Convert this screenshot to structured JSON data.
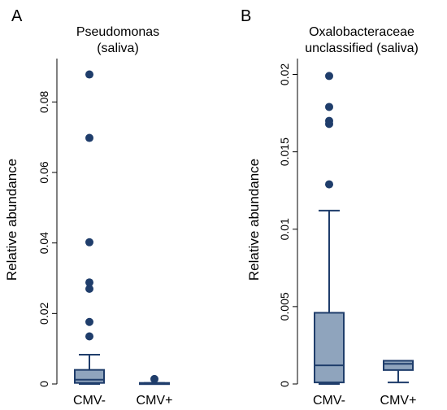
{
  "colors": {
    "box_fill": "#8fa4bd",
    "stroke": "#1f3d6b",
    "outlier": "#1f3d6b",
    "axis": "#000000"
  },
  "chart_data": [
    {
      "type": "box",
      "panel": "A",
      "title_lines": [
        "Pseudomonas",
        "(saliva)"
      ],
      "ylabel": "Relative abundance",
      "ylim": [
        0,
        0.09
      ],
      "yticks": [
        0,
        0.02,
        0.04,
        0.06,
        0.08
      ],
      "ytick_labels": [
        "0",
        "0.02",
        "0.04",
        "0.06",
        "0.08"
      ],
      "categories": [
        "CMV-",
        "CMV+"
      ],
      "boxes": [
        {
          "category": "CMV-",
          "whisker_low": 0,
          "q1": 0.0003,
          "median": 0.0012,
          "q3": 0.004,
          "whisker_high": 0.0083,
          "outliers": [
            0.0135,
            0.0176,
            0.027,
            0.0288,
            0.0402,
            0.0698,
            0.0878
          ]
        },
        {
          "category": "CMV+",
          "whisker_low": 0,
          "q1": 0,
          "median": 0.0002,
          "q3": 0.0003,
          "whisker_high": 0.0003,
          "outliers": [
            0.0014
          ]
        }
      ]
    },
    {
      "type": "box",
      "panel": "B",
      "title_lines": [
        "Oxalobacteraceae",
        "unclassified (saliva)"
      ],
      "ylabel": "Relative abundance",
      "ylim": [
        0,
        0.0205
      ],
      "yticks": [
        0,
        0.005,
        0.01,
        0.015,
        0.02
      ],
      "ytick_labels": [
        "0",
        "0.005",
        "0.01",
        "0.015",
        "0.02"
      ],
      "categories": [
        "CMV-",
        "CMV+"
      ],
      "boxes": [
        {
          "category": "CMV-",
          "whisker_low": 0,
          "q1": 0.0001,
          "median": 0.0012,
          "q3": 0.0046,
          "whisker_high": 0.0112,
          "outliers": [
            0.0129,
            0.0168,
            0.017,
            0.0179,
            0.0199
          ]
        },
        {
          "category": "CMV+",
          "whisker_low": 0.0001,
          "q1": 0.0009,
          "median": 0.0013,
          "q3": 0.0015,
          "whisker_high": 0.0015,
          "outliers": []
        }
      ]
    }
  ]
}
